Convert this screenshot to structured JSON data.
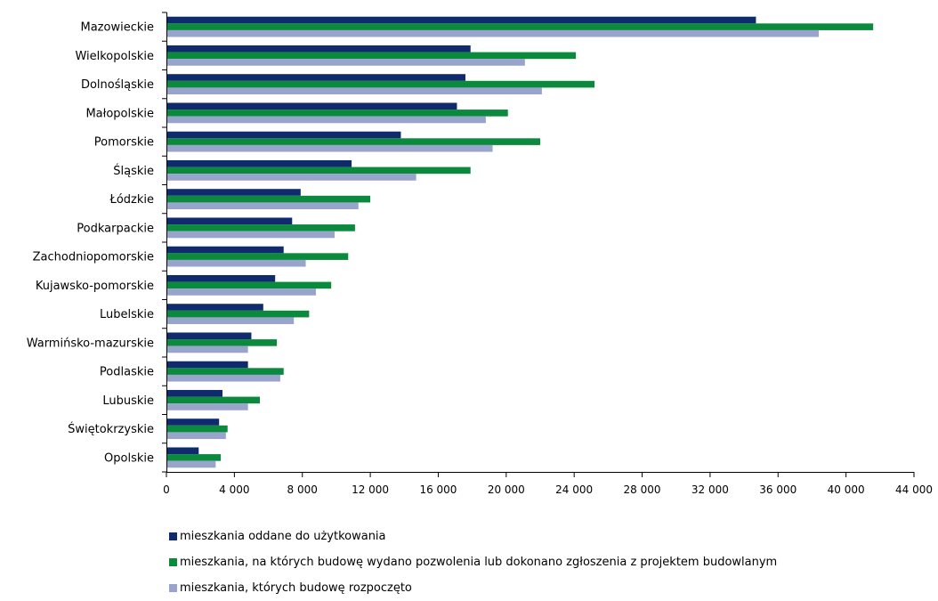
{
  "chart_data": {
    "type": "bar",
    "orientation": "horizontal",
    "categories": [
      "Mazowieckie",
      "Wielkopolskie",
      "Dolnośląskie",
      "Małopolskie",
      "Pomorskie",
      "Śląskie",
      "Łódzkie",
      "Podkarpackie",
      "Zachodniopomorskie",
      "Kujawsko-pomorskie",
      "Lubelskie",
      "Warmińsko-mazurskie",
      "Podlaskie",
      "Lubuskie",
      "Świętokrzyskie",
      "Opolskie"
    ],
    "series": [
      {
        "name": "mieszkania oddane do użytkowania",
        "color": "#102A6E",
        "values": [
          34700,
          17900,
          17600,
          17100,
          13800,
          10900,
          7900,
          7400,
          6900,
          6400,
          5700,
          5000,
          4800,
          3300,
          3100,
          1900
        ]
      },
      {
        "name": "mieszkania, na których budowę wydano pozwolenia lub dokonano zgłoszenia z projektem budowlanym",
        "color": "#0B8A3E",
        "values": [
          41600,
          24100,
          25200,
          20100,
          22000,
          17900,
          12000,
          11100,
          10700,
          9700,
          8400,
          6500,
          6900,
          5500,
          3600,
          3200
        ]
      },
      {
        "name": "mieszkania, których budowę rozpoczęto",
        "color": "#98A4CC",
        "values": [
          38400,
          21100,
          22100,
          18800,
          19200,
          14700,
          11300,
          9900,
          8200,
          8800,
          7500,
          4800,
          6700,
          4800,
          3500,
          2900
        ]
      }
    ],
    "xlim": [
      0,
      44000
    ],
    "xticks": [
      "0",
      "4 000",
      "8 000",
      "12 000",
      "16 000",
      "20 000",
      "24 000",
      "28 000",
      "32 000",
      "36 000",
      "40 000",
      "44 000"
    ],
    "grid": false,
    "legend_position": "bottom-left",
    "title": "",
    "xlabel": "",
    "ylabel": ""
  }
}
